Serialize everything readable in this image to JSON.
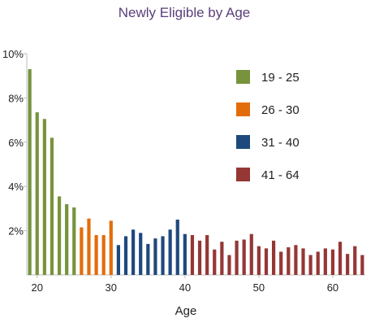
{
  "chart_data": {
    "type": "bar",
    "title": "Newly Eligible by Age",
    "xlabel": "Age",
    "ylabel": "",
    "xlim": [
      18.6,
      64.4
    ],
    "ylim": [
      0,
      10
    ],
    "y_ticks": [
      {
        "value": 2,
        "label": "2%"
      },
      {
        "value": 4,
        "label": "4%"
      },
      {
        "value": 6,
        "label": "6%"
      },
      {
        "value": 8,
        "label": "8%"
      },
      {
        "value": 10,
        "label": "10%"
      }
    ],
    "x_ticks": [
      {
        "value": 20,
        "label": "20"
      },
      {
        "value": 30,
        "label": "30"
      },
      {
        "value": 40,
        "label": "40"
      },
      {
        "value": 50,
        "label": "50"
      },
      {
        "value": 60,
        "label": "60"
      }
    ],
    "grid": false,
    "legend_position": "top-right",
    "series": [
      {
        "name": "19 - 25",
        "color": "#77933c",
        "points": [
          {
            "age": 19,
            "value": 9.3
          },
          {
            "age": 20,
            "value": 7.35
          },
          {
            "age": 21,
            "value": 7.05
          },
          {
            "age": 22,
            "value": 6.2
          },
          {
            "age": 23,
            "value": 3.55
          },
          {
            "age": 24,
            "value": 3.2
          },
          {
            "age": 25,
            "value": 3.05
          }
        ]
      },
      {
        "name": "26 - 30",
        "color": "#e36c0a",
        "points": [
          {
            "age": 26,
            "value": 2.15
          },
          {
            "age": 27,
            "value": 2.55
          },
          {
            "age": 28,
            "value": 1.8
          },
          {
            "age": 29,
            "value": 1.8
          },
          {
            "age": 30,
            "value": 2.45
          }
        ]
      },
      {
        "name": "31 - 40",
        "color": "#1f497d",
        "points": [
          {
            "age": 31,
            "value": 1.35
          },
          {
            "age": 32,
            "value": 1.75
          },
          {
            "age": 33,
            "value": 2.05
          },
          {
            "age": 34,
            "value": 1.9
          },
          {
            "age": 35,
            "value": 1.4
          },
          {
            "age": 36,
            "value": 1.65
          },
          {
            "age": 37,
            "value": 1.75
          },
          {
            "age": 38,
            "value": 2.05
          },
          {
            "age": 39,
            "value": 2.5
          },
          {
            "age": 40,
            "value": 1.85
          }
        ]
      },
      {
        "name": "41 - 64",
        "color": "#953735",
        "points": [
          {
            "age": 41,
            "value": 1.8
          },
          {
            "age": 42,
            "value": 1.55
          },
          {
            "age": 43,
            "value": 1.8
          },
          {
            "age": 44,
            "value": 1.15
          },
          {
            "age": 45,
            "value": 1.5
          },
          {
            "age": 46,
            "value": 0.9
          },
          {
            "age": 47,
            "value": 1.55
          },
          {
            "age": 48,
            "value": 1.6
          },
          {
            "age": 49,
            "value": 1.85
          },
          {
            "age": 50,
            "value": 1.3
          },
          {
            "age": 51,
            "value": 1.2
          },
          {
            "age": 52,
            "value": 1.55
          },
          {
            "age": 53,
            "value": 1.05
          },
          {
            "age": 54,
            "value": 1.25
          },
          {
            "age": 55,
            "value": 1.35
          },
          {
            "age": 56,
            "value": 1.2
          },
          {
            "age": 57,
            "value": 0.9
          },
          {
            "age": 58,
            "value": 1.05
          },
          {
            "age": 59,
            "value": 1.2
          },
          {
            "age": 60,
            "value": 1.15
          },
          {
            "age": 61,
            "value": 1.5
          },
          {
            "age": 62,
            "value": 0.95
          },
          {
            "age": 63,
            "value": 1.3
          },
          {
            "age": 64,
            "value": 0.9
          }
        ]
      }
    ]
  }
}
